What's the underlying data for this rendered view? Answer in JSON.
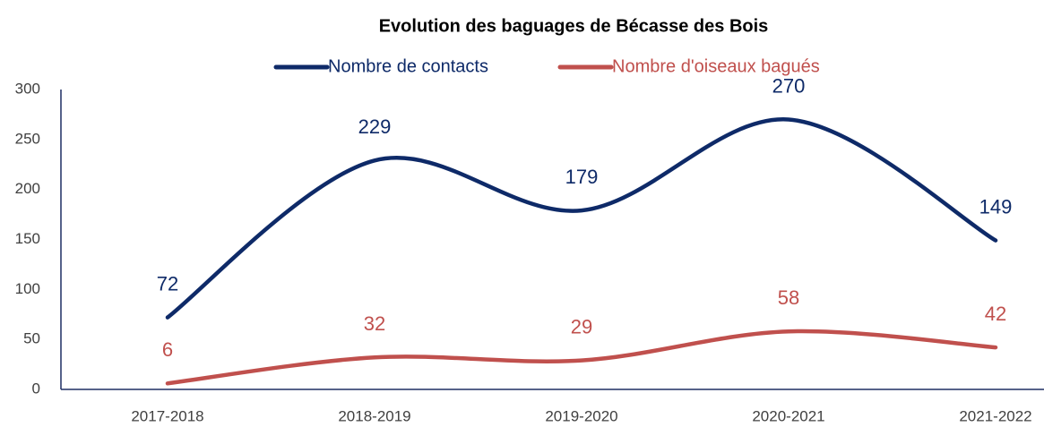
{
  "chart_data": {
    "type": "line",
    "title": "Evolution des baguages de Bécasse des Bois",
    "categories": [
      "2017-2018",
      "2018-2019",
      "2019-2020",
      "2020-2021",
      "2021-2022"
    ],
    "series": [
      {
        "name": "Nombre de contacts",
        "color": "#0e2a68",
        "values": [
          72,
          229,
          179,
          270,
          149
        ]
      },
      {
        "name": "Nombre d'oiseaux bagués",
        "color": "#c0504d",
        "values": [
          6,
          32,
          29,
          58,
          42
        ]
      }
    ],
    "ylim": [
      0,
      300
    ],
    "yticks": [
      0,
      50,
      100,
      150,
      200,
      250,
      300
    ],
    "smooth": true
  }
}
